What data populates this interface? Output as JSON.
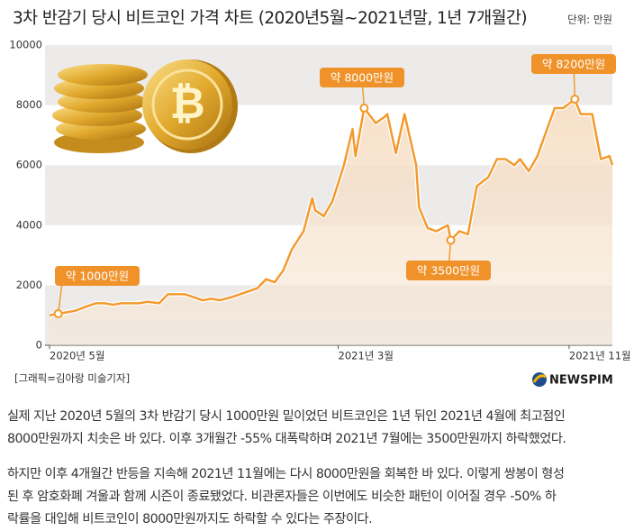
{
  "chart_data": {
    "type": "line",
    "title": "3차 반감기 당시 비트코인 가격 차트 (2020년5월~2021년말, 1년 7개월간)",
    "unit_label": "단위: 만원",
    "x": [
      0,
      0.3,
      0.6,
      0.9,
      1.3,
      1.6,
      1.9,
      2.2,
      2.5,
      2.8,
      3.1,
      3.4,
      3.8,
      4.1,
      4.4,
      4.7,
      5.0,
      5.3,
      5.6,
      5.9,
      6.3,
      6.6,
      6.9,
      7.2,
      7.5,
      7.8,
      8.1,
      8.4,
      8.8,
      9.1,
      9.2,
      9.5,
      9.8,
      10.2,
      10.5,
      10.6,
      10.9,
      11.3,
      11.6,
      11.7,
      12.0,
      12.3,
      12.7,
      12.8,
      13.1,
      13.4,
      13.8,
      13.9,
      14.2,
      14.5,
      14.8,
      15.2,
      15.5,
      15.8,
      16.1,
      16.3,
      16.6,
      16.9,
      17.2,
      17.5,
      17.8,
      18.2,
      18.4,
      18.8,
      19.1,
      19.4,
      19.5
    ],
    "series": [
      {
        "name": "비트코인 가격",
        "color": "#f39a2e",
        "values": [
          1000,
          1050,
          1100,
          1150,
          1300,
          1400,
          1400,
          1350,
          1400,
          1400,
          1400,
          1450,
          1400,
          1700,
          1700,
          1700,
          1600,
          1500,
          1550,
          1500,
          1600,
          1700,
          1800,
          1900,
          2200,
          2100,
          2500,
          3200,
          3800,
          4900,
          4500,
          4300,
          4800,
          6000,
          7200,
          6300,
          7900,
          7400,
          7600,
          7700,
          6400,
          7700,
          6000,
          4600,
          3900,
          3800,
          4000,
          3500,
          3800,
          3700,
          5300,
          5600,
          6200,
          6200,
          6000,
          6200,
          5800,
          6300,
          7100,
          7900,
          7900,
          8200,
          7700,
          7700,
          6200,
          6300,
          6000
        ]
      }
    ],
    "xlim": [
      0,
      19.5
    ],
    "xticks": [
      {
        "value": 0,
        "label": "2020년 5월"
      },
      {
        "value": 10,
        "label": "2021년 3월"
      },
      {
        "value": 18,
        "label": "2021년 11월"
      }
    ],
    "ylim": [
      0,
      10000
    ],
    "yticks": [
      0,
      2000,
      4000,
      6000,
      8000,
      10000
    ],
    "annotations": [
      "약 1000만원",
      "약 8000만원",
      "약 3500만원",
      "약 8200만원"
    ]
  },
  "credit": "[그래픽=김아랑 미술기자]",
  "logo": "NEWSPIM",
  "article": [
    [
      "실제 지난 2020년 5월의 3차 반감기 당시 1000만원 밑이었던 비트코인은 1년 뒤인 2021년 4월에 최고점인",
      "8000만원까지 치솟은 바 있다. 이후 3개월간 -55% 대폭락하며 2021년 7월에는 3500만원까지 하락했었다."
    ],
    [
      "하지만 이후 4개월간 반등을 지속해 2021년 11월에는 다시 8000만원을 회복한 바 있다. 이렇게 쌍봉이 형성",
      "된 후 암호화폐 겨울과 함께 시즌이 종료됐었다. 비관론자들은 이번에도 비슷한 패턴이 이어질 경우 -50% 하",
      "락률을 대입해 비트코인이 8000만원까지도 하락할 수 있다는 주장이다."
    ]
  ]
}
